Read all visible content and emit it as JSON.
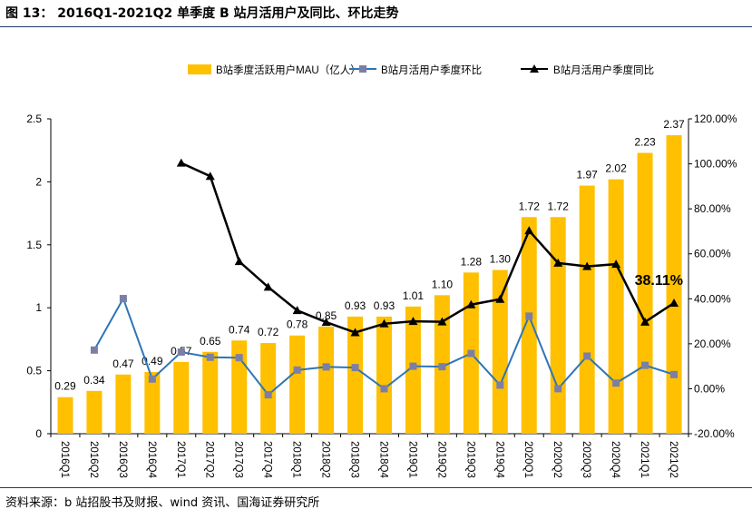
{
  "figure": {
    "title": "图 13： 2016Q1-2021Q2 单季度 B 站月活用户及同比、环比走势",
    "source": "资料来源：b 站招股书及财报、wind 资讯、国海证券研究所"
  },
  "colors": {
    "bar": "#ffc000",
    "qoq_line": "#2e75b6",
    "qoq_marker": "#7b7fa6",
    "yoy_line": "#000000"
  },
  "chart_data": {
    "type": "bar",
    "categories": [
      "2016Q1",
      "2016Q2",
      "2016Q3",
      "2016Q4",
      "2017Q1",
      "2017Q2",
      "2017Q3",
      "2017Q4",
      "2018Q1",
      "2018Q2",
      "2018Q3",
      "2018Q4",
      "2019Q1",
      "2019Q2",
      "2019Q3",
      "2019Q4",
      "2020Q1",
      "2020Q2",
      "2020Q3",
      "2020Q4",
      "2021Q1",
      "2021Q2"
    ],
    "bar_labels": [
      "0.29",
      "0.34",
      "0.47",
      "0.49",
      "0.57",
      "0.65",
      "0.74",
      "0.72",
      "0.78",
      "0.85",
      "0.93",
      "0.93",
      "1.01",
      "1.10",
      "1.28",
      "1.30",
      "1.72",
      "1.72",
      "1.97",
      "2.02",
      "2.23",
      "2.37"
    ],
    "series": [
      {
        "name": "B站季度活跃用户MAU（亿人）",
        "type": "bar",
        "axis": "left",
        "values": [
          0.29,
          0.34,
          0.47,
          0.49,
          0.57,
          0.65,
          0.74,
          0.72,
          0.78,
          0.85,
          0.93,
          0.93,
          1.01,
          1.1,
          1.28,
          1.3,
          1.72,
          1.72,
          1.97,
          2.02,
          2.23,
          2.37
        ]
      },
      {
        "name": "B站月活用户季度环比",
        "type": "line",
        "axis": "right",
        "values": [
          null,
          17.2,
          40.1,
          4.3,
          16.3,
          14.0,
          13.8,
          -2.7,
          8.3,
          9.7,
          9.4,
          0.0,
          10.0,
          9.8,
          15.7,
          1.6,
          32.3,
          0.0,
          14.5,
          2.5,
          10.4,
          6.3
        ]
      },
      {
        "name": "B站月活用户季度同比",
        "type": "line",
        "axis": "right",
        "values": [
          null,
          null,
          null,
          null,
          100.4,
          94.5,
          56.6,
          45.2,
          34.8,
          29.6,
          25.0,
          28.9,
          30.0,
          29.8,
          37.4,
          39.8,
          70.3,
          55.9,
          54.4,
          55.4,
          29.7,
          38.11
        ]
      }
    ],
    "annotations": [
      {
        "text": "38.11%",
        "category": "2021Q2",
        "series": "B站月活用户季度同比"
      }
    ],
    "ylim": [
      0,
      2.5
    ],
    "yticks": [
      "0",
      "0.5",
      "1",
      "1.5",
      "2",
      "2.5"
    ],
    "y2lim": [
      -20,
      120
    ],
    "y2ticks": [
      "-20.00%",
      "0.00%",
      "20.00%",
      "40.00%",
      "60.00%",
      "80.00%",
      "100.00%",
      "120.00%"
    ],
    "legend": "top",
    "grid": false
  }
}
